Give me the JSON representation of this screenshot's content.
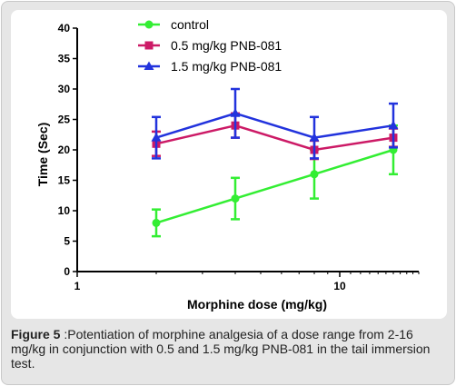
{
  "chart_data": {
    "type": "line",
    "xscale": "log",
    "x_ticks": [
      1,
      10
    ],
    "x_tick_labels": [
      "1",
      "10"
    ],
    "xlim": [
      1,
      20
    ],
    "y_ticks": [
      0,
      5,
      10,
      15,
      20,
      25,
      30,
      35,
      40
    ],
    "y_tick_labels": [
      "0",
      "5",
      "10",
      "15",
      "20",
      "25",
      "30",
      "35",
      "40"
    ],
    "ylim": [
      0,
      40
    ],
    "xlabel": "Morphine dose (mg/kg)",
    "ylabel": "Time (Sec)",
    "legend_position": "top-left",
    "x": [
      2,
      4,
      8,
      16
    ],
    "series": [
      {
        "name": "control",
        "color": "#33ee33",
        "marker": "circle",
        "values": [
          8,
          12,
          16,
          20
        ],
        "errors": [
          2.2,
          3.4,
          4.0,
          4.0
        ]
      },
      {
        "name": "0.5 mg/kg PNB-081",
        "color": "#cc1a66",
        "marker": "square",
        "values": [
          21,
          24,
          20,
          22
        ],
        "errors": [
          2.0,
          2.0,
          1.5,
          1.5
        ]
      },
      {
        "name": "1.5 mg/kg PNB-081",
        "color": "#2233dd",
        "marker": "triangle",
        "values": [
          22,
          26,
          22,
          24
        ],
        "errors": [
          3.4,
          4.0,
          3.4,
          3.6
        ]
      }
    ]
  },
  "caption": {
    "label": "Figure 5",
    "text": " :Potentiation of morphine analgesia of a dose range from 2-16 mg/kg in conjunction with 0.5 and 1.5 mg/kg PNB-081 in the tail immersion test."
  }
}
